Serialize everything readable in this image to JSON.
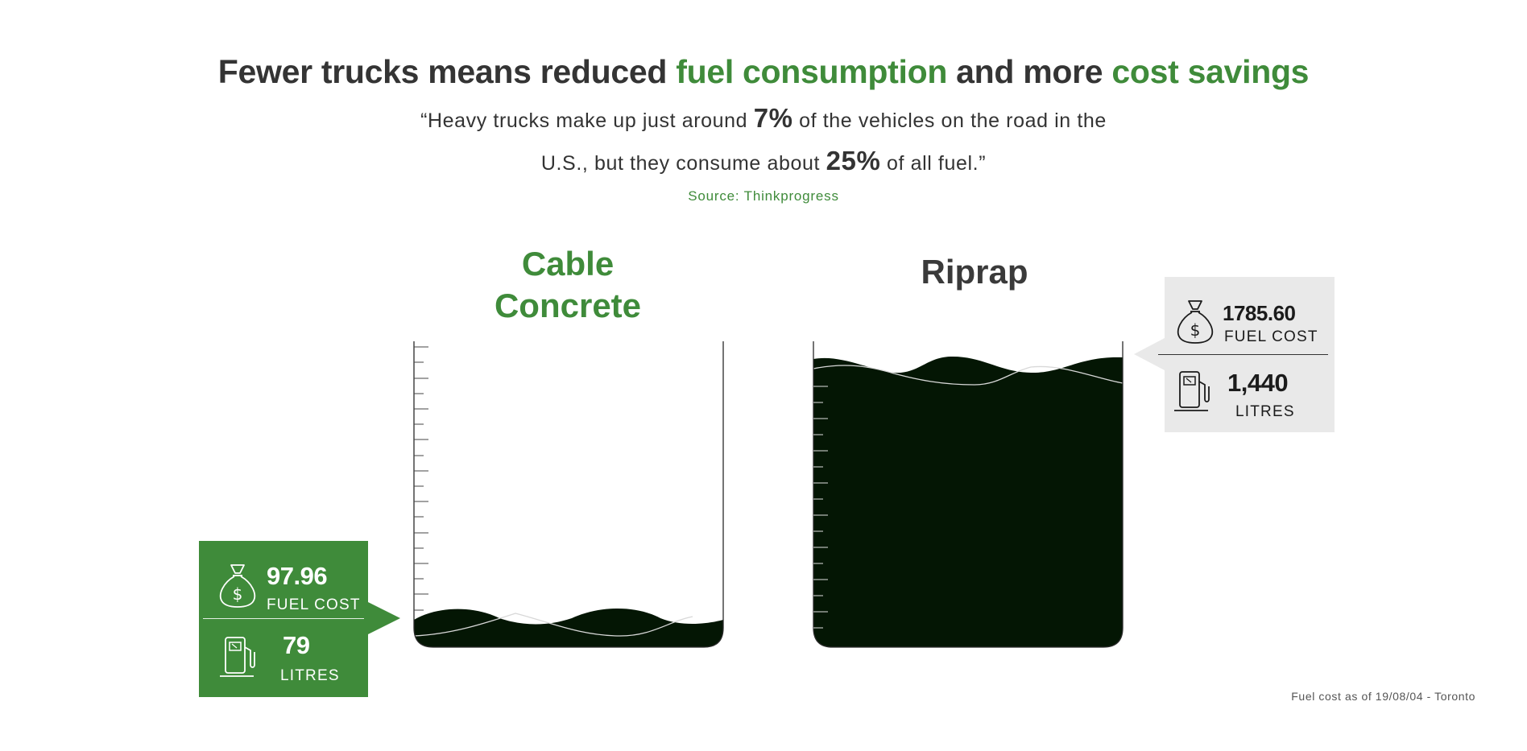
{
  "headline": {
    "part1": "Fewer trucks means reduced ",
    "part2": "fuel consumption",
    "part3": " and more ",
    "part4": "cost savings"
  },
  "quote": {
    "line1_a": "“Heavy trucks make up just around ",
    "line1_pct": "7%",
    "line1_b": " of the vehicles on the road in the",
    "line2_a": "U.S., but they consume about ",
    "line2_pct": "25%",
    "line2_b": " of all fuel.”"
  },
  "source": "Source: Thinkprogress",
  "left": {
    "title_line1": "Cable",
    "title_line2": "Concrete",
    "fuel_cost": "97.96",
    "fuel_cost_label": "FUEL COST",
    "litres": "79",
    "litres_label": "LITRES",
    "icon_cost": "money-bag-icon",
    "icon_litres": "fuel-pump-icon",
    "fill_level": 0.1
  },
  "right": {
    "title": "Riprap",
    "fuel_cost": "1785.60",
    "fuel_cost_label": "FUEL COST",
    "litres": "1,440",
    "litres_label": "LITRES",
    "icon_cost": "money-bag-icon",
    "icon_litres": "fuel-pump-icon",
    "fill_level": 0.93
  },
  "footnote": "Fuel cost as of 19/08/04 - Toronto",
  "colors": {
    "accent_green": "#3f8b3a",
    "liquid": "#041604",
    "heading": "#343434",
    "callout_gray": "#e9e9e9"
  }
}
